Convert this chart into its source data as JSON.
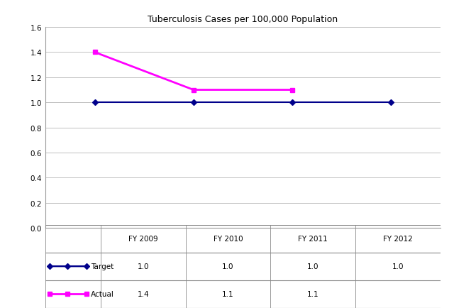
{
  "title": "Tuberculosis Cases per 100,000 Population",
  "x_labels": [
    "FY 2009",
    "FY 2010",
    "FY 2011",
    "FY 2012"
  ],
  "x_positions": [
    0,
    1,
    2,
    3
  ],
  "target_values": [
    1.0,
    1.0,
    1.0,
    1.0
  ],
  "actual_values": [
    1.4,
    1.1,
    1.1,
    null
  ],
  "target_color": "#00008B",
  "actual_color": "#FF00FF",
  "ylim": [
    0.0,
    1.6
  ],
  "yticks": [
    0.0,
    0.2,
    0.4,
    0.6,
    0.8,
    1.0,
    1.2,
    1.4,
    1.6
  ],
  "table_col_labels": [
    "FY 2009",
    "FY 2010",
    "FY 2011",
    "FY 2012"
  ],
  "table_target_row": [
    "1.0",
    "1.0",
    "1.0",
    "1.0"
  ],
  "table_actual_row": [
    "1.4",
    "1.1",
    "1.1",
    ""
  ],
  "background_color": "#FFFFFF",
  "grid_color": "#C0C0C0",
  "title_fontsize": 9
}
